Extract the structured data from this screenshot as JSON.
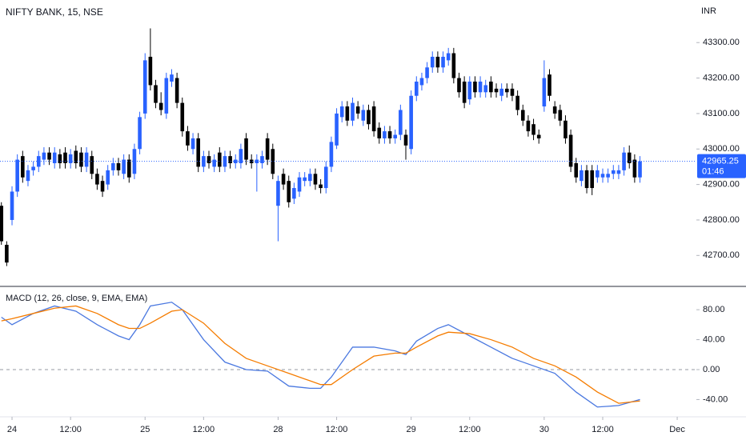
{
  "chart_data": [
    {
      "type": "candlestick",
      "title": "NIFTY BANK, 15, NSE",
      "currency": "INR",
      "x": [
        -2,
        -1,
        0,
        1,
        2,
        3,
        4,
        5,
        6,
        7,
        8,
        9,
        10,
        11,
        12,
        13,
        14,
        15,
        16,
        17,
        18,
        19,
        20,
        21,
        22,
        23,
        24,
        25,
        26,
        27,
        28,
        29,
        30,
        31,
        32,
        33,
        34,
        35,
        36,
        37,
        38,
        39,
        40,
        41,
        42,
        43,
        44,
        45,
        46,
        47,
        48,
        49,
        50,
        51,
        52,
        53,
        54,
        55,
        56,
        57,
        58,
        59,
        60,
        61,
        62,
        63,
        64,
        65,
        66,
        67,
        68,
        69,
        70,
        71,
        72,
        73,
        74,
        75,
        76,
        77,
        78,
        79,
        80,
        81,
        82,
        83,
        84,
        85,
        86,
        87,
        88,
        89,
        90,
        91,
        92,
        93,
        94,
        95,
        96,
        97,
        98,
        99,
        100,
        101,
        102,
        103,
        104,
        105,
        106,
        107,
        108,
        109,
        110,
        111,
        112,
        113,
        114,
        115,
        116,
        117,
        118
      ],
      "open": [
        42840,
        42730,
        42800,
        42880,
        42980,
        42910,
        42940,
        42950,
        42970,
        42990,
        42960,
        42985,
        42990,
        42960,
        42995,
        42990,
        42950,
        42980,
        42930,
        42910,
        42900,
        42940,
        42960,
        42930,
        42970,
        42930,
        43000,
        43100,
        43260,
        43180,
        43130,
        43100,
        43190,
        43200,
        43130,
        43050,
        43000,
        43030,
        42950,
        42980,
        42950,
        42990,
        42950,
        42980,
        42960,
        42960,
        43030,
        42970,
        42960,
        42960,
        43030,
        43000,
        42840,
        42930,
        42910,
        42860,
        42880,
        42910,
        42910,
        42930,
        42900,
        42890,
        42950,
        43010,
        43090,
        43120,
        43080,
        43120,
        43080,
        43110,
        43120,
        43060,
        43030,
        43050,
        43030,
        43040,
        43040,
        43000,
        43150,
        43180,
        43200,
        43230,
        43260,
        43230,
        43250,
        43270,
        43200,
        43190,
        43140,
        43190,
        43160,
        43160,
        43190,
        43170,
        43150,
        43170,
        43170,
        43150,
        43110,
        43080,
        43070,
        43040,
        43120,
        43210,
        43120,
        43110,
        43080,
        43040,
        42960,
        42910,
        42940,
        42940,
        42920,
        42920,
        42920,
        42930,
        42930,
        42940,
        42990,
        42970,
        42920
      ],
      "high": [
        42850,
        42740,
        42895,
        42985,
        42995,
        42955,
        42965,
        42995,
        43005,
        43005,
        43005,
        43000,
        43005,
        43000,
        43010,
        43005,
        43005,
        42995,
        42945,
        42925,
        42955,
        42975,
        42975,
        42985,
        42985,
        43015,
        43105,
        43270,
        43340,
        43195,
        43160,
        43215,
        43225,
        43215,
        43145,
        43065,
        43045,
        43045,
        42995,
        42995,
        42985,
        43005,
        42995,
        42995,
        42985,
        43015,
        43045,
        42985,
        42985,
        42995,
        43045,
        43015,
        42925,
        42945,
        42925,
        42905,
        42935,
        42935,
        42945,
        42945,
        42915,
        42965,
        43035,
        43115,
        43135,
        43135,
        43145,
        43135,
        43125,
        43125,
        43135,
        43075,
        43065,
        43065,
        43055,
        43125,
        43055,
        43165,
        43205,
        43215,
        43245,
        43275,
        43275,
        43275,
        43285,
        43285,
        43215,
        43205,
        43205,
        43205,
        43205,
        43195,
        43205,
        43185,
        43185,
        43185,
        43185,
        43165,
        43125,
        43095,
        43085,
        43055,
        43250,
        43225,
        43135,
        43125,
        43095,
        43055,
        42975,
        42955,
        42955,
        42955,
        42955,
        42945,
        42945,
        42955,
        42955,
        43005,
        43010,
        42985,
        42980
      ],
      "low": [
        42730,
        42670,
        42785,
        42865,
        42905,
        42895,
        42925,
        42935,
        42955,
        42955,
        42945,
        42945,
        42945,
        42945,
        42945,
        42935,
        42935,
        42915,
        42885,
        42865,
        42885,
        42925,
        42925,
        42915,
        42905,
        42915,
        42985,
        43085,
        43165,
        43115,
        43095,
        43085,
        43175,
        43115,
        43035,
        42995,
        42985,
        42935,
        42935,
        42945,
        42935,
        42935,
        42935,
        42945,
        42945,
        42945,
        42955,
        42945,
        42880,
        42945,
        42955,
        42915,
        42740,
        42885,
        42835,
        42845,
        42865,
        42895,
        42895,
        42885,
        42875,
        42875,
        42935,
        43000,
        43075,
        43065,
        43065,
        43085,
        43065,
        43055,
        43035,
        43015,
        43015,
        43015,
        43015,
        43025,
        42970,
        42985,
        43135,
        43165,
        43185,
        43215,
        43215,
        43215,
        43235,
        43185,
        43145,
        43115,
        43125,
        43145,
        43145,
        43145,
        43145,
        43145,
        43135,
        43145,
        43135,
        43095,
        43065,
        43035,
        43025,
        43015,
        43105,
        43135,
        43085,
        43065,
        43015,
        42935,
        42905,
        42895,
        42875,
        42870,
        42905,
        42905,
        42905,
        42915,
        42915,
        42925,
        42945,
        42905,
        42905
      ],
      "close": [
        42740,
        42680,
        42880,
        42970,
        42920,
        42940,
        42950,
        42980,
        42990,
        42970,
        42990,
        42960,
        42960,
        42985,
        42960,
        42950,
        42990,
        42930,
        42900,
        42880,
        42940,
        42960,
        42940,
        42970,
        42920,
        43000,
        43090,
        43250,
        43180,
        43130,
        43110,
        43200,
        43210,
        43130,
        43050,
        43010,
        43030,
        42950,
        42980,
        42960,
        42970,
        42950,
        42980,
        42960,
        42970,
        43000,
        42970,
        42960,
        42970,
        42980,
        42970,
        42930,
        42910,
        42900,
        42850,
        42890,
        42920,
        42920,
        42930,
        42900,
        42890,
        42950,
        43020,
        43100,
        43120,
        43080,
        43130,
        43100,
        43110,
        43070,
        43050,
        43030,
        43050,
        43030,
        43040,
        43110,
        43010,
        43150,
        43190,
        43200,
        43230,
        43260,
        43230,
        43260,
        43270,
        43200,
        43160,
        43130,
        43190,
        43160,
        43190,
        43180,
        43160,
        43160,
        43170,
        43160,
        43150,
        43110,
        43080,
        43050,
        43040,
        43030,
        43200,
        43150,
        43100,
        43080,
        43030,
        42950,
        42920,
        42940,
        42890,
        42890,
        42940,
        42930,
        42930,
        42940,
        42940,
        42990,
        42960,
        42920,
        42965.25
      ],
      "up_color": "#2962ff",
      "down_color": "#000000",
      "xlim": [
        -2.26,
        128.6
      ],
      "ylim": [
        42615,
        43420
      ],
      "yticks": [
        {
          "value": 42700,
          "label": "42700.00"
        },
        {
          "value": 42800,
          "label": "42800.00"
        },
        {
          "value": 42900,
          "label": "42900.00"
        },
        {
          "value": 43000,
          "label": "43000.00"
        },
        {
          "value": 43100,
          "label": "43100.00"
        },
        {
          "value": 43200,
          "label": "43200.00"
        },
        {
          "value": 43300,
          "label": "43300.00"
        }
      ],
      "last_price": 42965.25,
      "countdown": "01:46",
      "last_price_color": "#2962ff"
    },
    {
      "type": "line",
      "title": "MACD (12, 26, close, 9, EMA, EMA)",
      "x": [
        -2,
        0,
        4,
        8,
        12,
        16,
        20,
        22,
        24,
        26,
        30,
        32,
        36,
        40,
        44,
        48,
        52,
        56,
        58,
        60,
        64,
        68,
        72,
        74,
        76,
        80,
        82,
        86,
        90,
        94,
        98,
        102,
        106,
        110,
        114,
        118
      ],
      "series": [
        {
          "color": "#4a78e0",
          "values": [
            70,
            60,
            75,
            85,
            78,
            60,
            45,
            40,
            60,
            85,
            90,
            80,
            40,
            10,
            0,
            -2,
            -22,
            -25,
            -25,
            -10,
            30,
            30,
            25,
            20,
            38,
            55,
            60,
            45,
            30,
            15,
            5,
            -5,
            -30,
            -50,
            -48,
            -40
          ]
        },
        {
          "color": "#f57c00",
          "values": [
            65,
            68,
            75,
            82,
            85,
            75,
            60,
            55,
            55,
            62,
            78,
            80,
            62,
            35,
            15,
            5,
            -5,
            -15,
            -20,
            -20,
            0,
            18,
            22,
            22,
            30,
            45,
            50,
            48,
            40,
            30,
            15,
            5,
            -10,
            -30,
            -45,
            -42
          ]
        }
      ],
      "xlim": [
        -2.26,
        128.6
      ],
      "ylim": [
        -62,
        109
      ],
      "yticks": [
        {
          "value": -40,
          "label": "-40.00"
        },
        {
          "value": 0,
          "label": "0.00"
        },
        {
          "value": 40,
          "label": "40.00"
        },
        {
          "value": 80,
          "label": "80.00"
        }
      ],
      "reference_line": 0,
      "xticks": [
        {
          "value": 0,
          "label": "24"
        },
        {
          "value": 11,
          "label": "12:00"
        },
        {
          "value": 25,
          "label": "25"
        },
        {
          "value": 36,
          "label": "12:00"
        },
        {
          "value": 50,
          "label": "28"
        },
        {
          "value": 61,
          "label": "12:00"
        },
        {
          "value": 75,
          "label": "29"
        },
        {
          "value": 86,
          "label": "12:00"
        },
        {
          "value": 100,
          "label": "30"
        },
        {
          "value": 111,
          "label": "12:00"
        },
        {
          "value": 125,
          "label": "Dec"
        }
      ]
    }
  ]
}
